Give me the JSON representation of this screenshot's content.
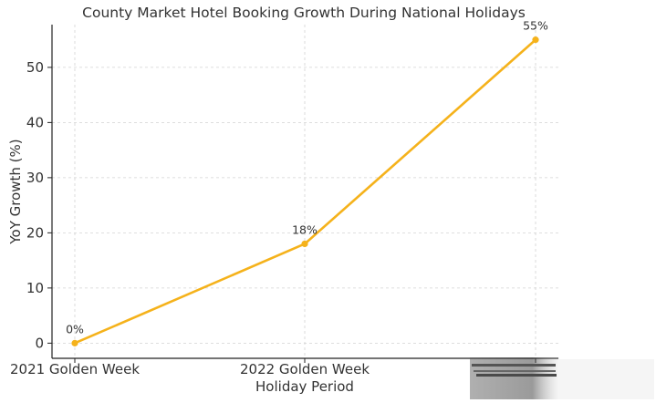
{
  "chart_data": {
    "type": "line",
    "title": "County Market Hotel Booking Growth During National Holidays",
    "xlabel": "Holiday Period",
    "ylabel": "YoY Growth (%)",
    "categories": [
      "2021 Golden Week",
      "2022 Golden Week",
      ""
    ],
    "values": [
      0,
      18,
      55
    ],
    "data_labels": [
      "0%",
      "18%",
      "55%"
    ],
    "yticks": [
      0,
      10,
      20,
      30,
      40,
      50
    ],
    "ylim": [
      -2.75,
      57.75
    ],
    "grid": true,
    "line_color": "#F5B21B"
  }
}
